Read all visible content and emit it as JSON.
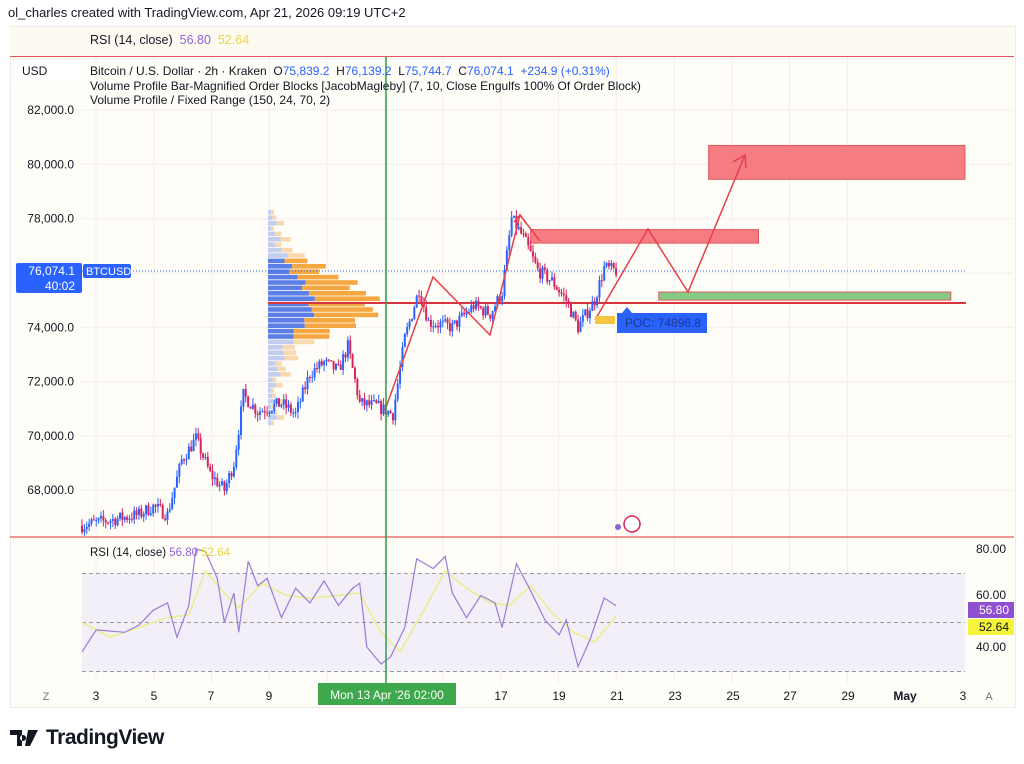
{
  "credit": "ol_charles created with TradingView.com, Apr 21, 2026 09:19 UTC+2",
  "rsi_header": {
    "label": "RSI (14, close)",
    "rsi": "56.80",
    "ma": "52.64"
  },
  "currency": "USD",
  "legend": {
    "symbol": "Bitcoin / U.S. Dollar · 2h · Kraken",
    "o_label": "O",
    "o": "75,839.2",
    "h_label": "H",
    "h": "76,139.2",
    "l_label": "L",
    "l": "75,744.7",
    "c_label": "C",
    "c": "76,074.1",
    "change": "+234.9 (+0.31%)",
    "indicator1": "Volume Profile Bar-Magnified Order Blocks [JacobMagleby] (7, 10, Close Engulfs 100% Of Order Block)",
    "indicator2": "Volume Profile / Fixed Range (150, 24, 70, 2)"
  },
  "price_label": {
    "price": "76,074.1",
    "countdown": "40:02",
    "ticker": "BTCUSD"
  },
  "poc_label": "POC: 74896.8",
  "crosshair_date": "Mon 13 Apr '26  02:00",
  "axis_buttons": {
    "left": "Z",
    "right": "A"
  },
  "logo": "TradingView",
  "colors": {
    "up": "#2962ff",
    "down": "#d6245c",
    "zone_red": "#f47c82",
    "zone_green": "#85c985",
    "rsi": "#9b7bd6",
    "rsi_ma": "#ecec8a",
    "crosshair": "#2ea043"
  },
  "chart_data": [
    {
      "type": "candlestick",
      "title": "Bitcoin / U.S. Dollar · 2h · Kraken",
      "y_ticks": [
        "82,000.0",
        "80,000.0",
        "78,000.0",
        "74,000.0",
        "72,000.0",
        "70,000.0",
        "68,000.0"
      ],
      "ylim": [
        66400,
        83200
      ],
      "x_ticks": [
        "3",
        "5",
        "7",
        "9",
        "17",
        "19",
        "21",
        "23",
        "25",
        "27",
        "29",
        "May",
        "3"
      ],
      "xlim": [
        "04-02 12:00",
        "05-03 12:00"
      ],
      "close_path": [
        [
          "04-02 12:00",
          66700
        ],
        [
          "04-03 12:00",
          66900
        ],
        [
          "04-04 12:00",
          67100
        ],
        [
          "04-05 00:00",
          67400
        ],
        [
          "04-05 12:00",
          67100
        ],
        [
          "04-06 00:00",
          69100
        ],
        [
          "04-06 12:00",
          69900
        ],
        [
          "04-07 00:00",
          68600
        ],
        [
          "04-07 12:00",
          68000
        ],
        [
          "04-07 20:00",
          69000
        ],
        [
          "04-08 04:00",
          71500
        ],
        [
          "04-08 16:00",
          70900
        ],
        [
          "04-09 12:00",
          71200
        ],
        [
          "04-10 00:00",
          70800
        ],
        [
          "04-10 12:00",
          72300
        ],
        [
          "04-11 00:00",
          72700
        ],
        [
          "04-11 12:00",
          72400
        ],
        [
          "04-11 20:00",
          73300
        ],
        [
          "04-12 06:00",
          71200
        ],
        [
          "04-12 20:00",
          71100
        ],
        [
          "04-13 10:00",
          70800
        ],
        [
          "04-13 20:00",
          73600
        ],
        [
          "04-14 08:00",
          75400
        ],
        [
          "04-14 16:00",
          74200
        ],
        [
          "04-15 12:00",
          74000
        ],
        [
          "04-16 06:00",
          74800
        ],
        [
          "04-16 20:00",
          74500
        ],
        [
          "04-17 06:00",
          75300
        ],
        [
          "04-17 14:00",
          78000
        ],
        [
          "04-18 00:00",
          77300
        ],
        [
          "04-18 12:00",
          76100
        ],
        [
          "04-19 00:00",
          75700
        ],
        [
          "04-19 12:00",
          75000
        ],
        [
          "04-19 22:00",
          74000
        ],
        [
          "04-20 12:00",
          75000
        ],
        [
          "04-20 20:00",
          76200
        ],
        [
          "04-21 06:00",
          76074.1
        ]
      ],
      "current_price": 76074.1,
      "poc": 74896.8,
      "zones": [
        {
          "kind": "supply",
          "from": "04-24 12:00",
          "to": "05-03 12:00",
          "low": 79450,
          "high": 80700
        },
        {
          "kind": "supply",
          "from": "04-18 06:00",
          "to": "04-26 06:00",
          "low": 77100,
          "high": 77600
        },
        {
          "kind": "demand",
          "from": "04-22 18:00",
          "to": "05-03 00:00",
          "low": 75000,
          "high": 75300
        }
      ]
    },
    {
      "type": "line",
      "title": "RSI (14, close)",
      "y_ticks": [
        "80.00",
        "60.00",
        "40.00"
      ],
      "bands": [
        30,
        50,
        70
      ],
      "ylim": [
        22,
        83
      ],
      "series": [
        {
          "name": "RSI",
          "last": 56.8,
          "values": [
            [
              "04-02 12:00",
              38
            ],
            [
              "04-03 00:00",
              47
            ],
            [
              "04-04 00:00",
              46
            ],
            [
              "04-04 12:00",
              49
            ],
            [
              "04-05 00:00",
              55
            ],
            [
              "04-05 12:00",
              58
            ],
            [
              "04-05 20:00",
              44
            ],
            [
              "04-06 06:00",
              57
            ],
            [
              "04-06 12:00",
              80
            ],
            [
              "04-06 20:00",
              79
            ],
            [
              "04-07 06:00",
              68
            ],
            [
              "04-07 12:00",
              50
            ],
            [
              "04-07 20:00",
              62
            ],
            [
              "04-08 00:00",
              46
            ],
            [
              "04-08 08:00",
              75
            ],
            [
              "04-08 16:00",
              65
            ],
            [
              "04-09 00:00",
              68
            ],
            [
              "04-09 12:00",
              52
            ],
            [
              "04-10 00:00",
              64
            ],
            [
              "04-10 12:00",
              58
            ],
            [
              "04-11 00:00",
              67
            ],
            [
              "04-11 12:00",
              57
            ],
            [
              "04-12 00:00",
              64
            ],
            [
              "04-12 06:00",
              66
            ],
            [
              "04-12 12:00",
              40
            ],
            [
              "04-13 00:00",
              33
            ],
            [
              "04-13 08:00",
              36
            ],
            [
              "04-13 20:00",
              48
            ],
            [
              "04-14 06:00",
              76
            ],
            [
              "04-14 20:00",
              72
            ],
            [
              "04-15 06:00",
              77
            ],
            [
              "04-15 12:00",
              62
            ],
            [
              "04-16 00:00",
              52
            ],
            [
              "04-16 12:00",
              61
            ],
            [
              "04-17 00:00",
              58
            ],
            [
              "04-17 06:00",
              48
            ],
            [
              "04-17 18:00",
              74
            ],
            [
              "04-18 06:00",
              63
            ],
            [
              "04-18 18:00",
              51
            ],
            [
              "04-19 06:00",
              45
            ],
            [
              "04-19 12:00",
              51
            ],
            [
              "04-19 22:00",
              32
            ],
            [
              "04-20 08:00",
              43
            ],
            [
              "04-20 20:00",
              60
            ],
            [
              "04-21 06:00",
              56.8
            ]
          ]
        },
        {
          "name": "RSI-based MA",
          "last": 52.64,
          "values": [
            [
              "04-02 12:00",
              50
            ],
            [
              "04-03 12:00",
              44
            ],
            [
              "04-04 12:00",
              48
            ],
            [
              "04-05 12:00",
              52
            ],
            [
              "04-06 06:00",
              53
            ],
            [
              "04-06 20:00",
              71
            ],
            [
              "04-07 12:00",
              62
            ],
            [
              "04-08 00:00",
              56
            ],
            [
              "04-08 20:00",
              66
            ],
            [
              "04-09 16:00",
              61
            ],
            [
              "04-10 12:00",
              60
            ],
            [
              "04-11 12:00",
              61
            ],
            [
              "04-12 06:00",
              62
            ],
            [
              "04-13 00:00",
              46
            ],
            [
              "04-13 16:00",
              38
            ],
            [
              "04-14 12:00",
              55
            ],
            [
              "04-15 06:00",
              71
            ],
            [
              "04-16 00:00",
              64
            ],
            [
              "04-16 20:00",
              58
            ],
            [
              "04-17 12:00",
              57
            ],
            [
              "04-18 06:00",
              65
            ],
            [
              "04-19 00:00",
              54
            ],
            [
              "04-19 18:00",
              46
            ],
            [
              "04-20 12:00",
              42
            ],
            [
              "04-21 06:00",
              52.64
            ]
          ]
        }
      ]
    }
  ]
}
